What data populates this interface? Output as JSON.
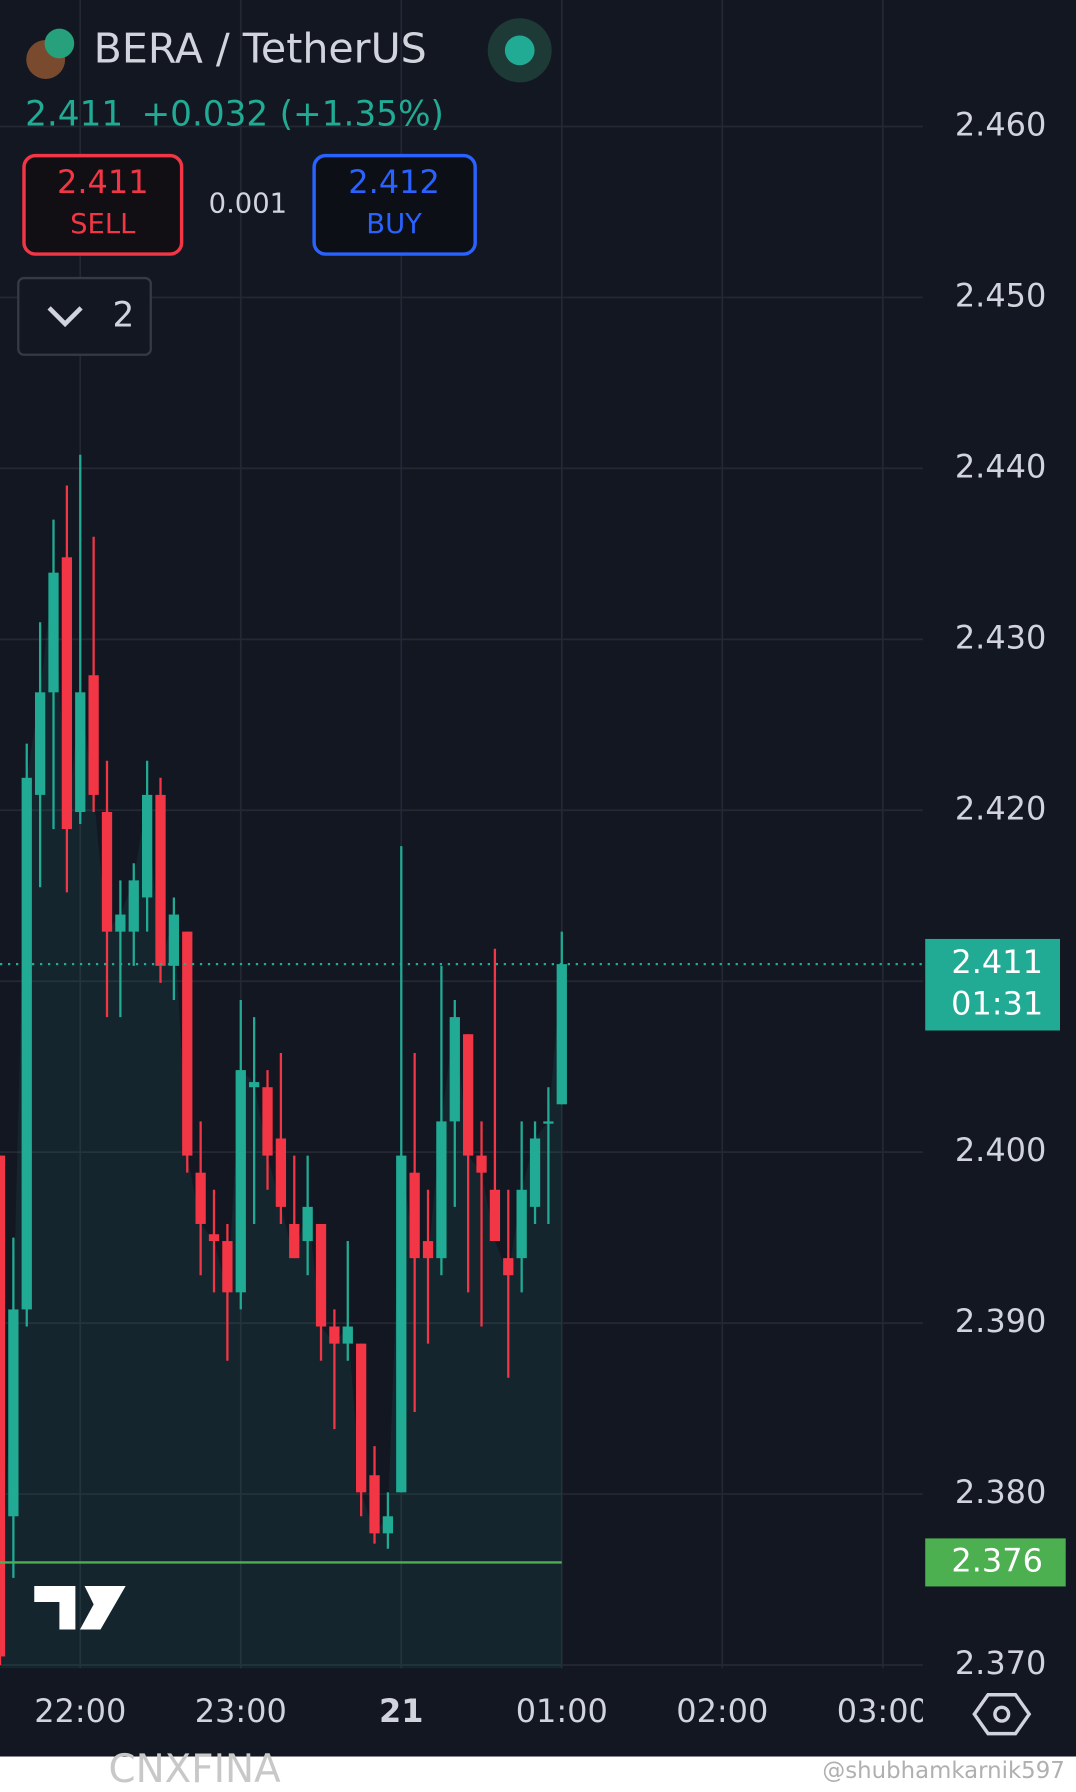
{
  "chart_data": {
    "type": "candlestick",
    "title": "BERA / TetherUS",
    "last": "2.411",
    "change": "+0.032",
    "change_pct": "(+1.35%)",
    "sell": {
      "price": "2.411",
      "label": "SELL"
    },
    "spread": "0.001",
    "buy": {
      "price": "2.412",
      "label": "BUY"
    },
    "dropdown": "2",
    "up_color": "#22ab94",
    "down_color": "#f23645",
    "x": [
      1290,
      1295,
      1300,
      1305,
      1310,
      1315,
      1320,
      1325,
      1330,
      1335,
      1340,
      1345,
      1350,
      1355,
      1360,
      1365,
      1370,
      1375,
      1380,
      1385,
      1390,
      1395,
      1400,
      1405,
      1410,
      1415,
      1420,
      1425,
      1430,
      1435,
      1440,
      1445,
      1450,
      1455,
      1460,
      1465,
      1470,
      1475,
      1480,
      1485,
      1490,
      1495,
      1500
    ],
    "open": [
      2.3998,
      2.3787,
      2.3908,
      2.4209,
      2.4269,
      2.4348,
      2.4199,
      2.4279,
      2.4199,
      2.4129,
      2.4129,
      2.4149,
      2.4209,
      2.4109,
      2.4129,
      2.3988,
      2.3952,
      2.3948,
      2.3918,
      2.4038,
      2.4038,
      2.4008,
      2.3958,
      2.3948,
      2.3958,
      2.3898,
      2.3888,
      2.3888,
      2.3811,
      2.3777,
      2.3801,
      2.3988,
      2.3948,
      2.3938,
      2.4018,
      2.4069,
      2.3998,
      2.3978,
      2.3938,
      2.3938,
      2.3968,
      2.4017,
      2.4028
    ],
    "high": [
      2.3998,
      2.395,
      2.4239,
      2.431,
      2.437,
      2.439,
      2.4408,
      2.436,
      2.4229,
      2.4159,
      2.4169,
      2.4229,
      2.4219,
      2.4149,
      2.4129,
      2.4018,
      2.3978,
      2.3958,
      2.4089,
      2.4079,
      2.4048,
      2.4058,
      2.3998,
      2.3998,
      2.3958,
      2.3908,
      2.3948,
      2.3888,
      2.3828,
      2.3801,
      2.4179,
      2.4058,
      2.3978,
      2.4109,
      2.4089,
      2.4069,
      2.4018,
      2.4119,
      2.3978,
      2.4018,
      2.4018,
      2.4038,
      2.4129
    ],
    "low": [
      2.37,
      2.3751,
      2.3898,
      2.4155,
      2.4189,
      2.4152,
      2.4192,
      2.4199,
      2.4079,
      2.4079,
      2.4109,
      2.4129,
      2.4099,
      2.4089,
      2.3988,
      2.3928,
      2.3918,
      2.3878,
      2.3908,
      2.3958,
      2.3978,
      2.3958,
      2.3938,
      2.3928,
      2.3878,
      2.3838,
      2.3878,
      2.3787,
      2.3771,
      2.3768,
      2.3801,
      2.3848,
      2.3888,
      2.3928,
      2.3968,
      2.3918,
      2.3898,
      2.3948,
      2.3868,
      2.3918,
      2.3958,
      2.3958,
      2.4028
    ],
    "close": [
      2.3705,
      2.3908,
      2.4219,
      2.4269,
      2.4339,
      2.4189,
      2.4269,
      2.4209,
      2.4129,
      2.4139,
      2.4159,
      2.4209,
      2.4109,
      2.4139,
      2.3998,
      2.3958,
      2.3948,
      2.3918,
      2.4048,
      2.4041,
      2.3998,
      2.3968,
      2.3938,
      2.3968,
      2.3898,
      2.3888,
      2.3898,
      2.3801,
      2.3777,
      2.3787,
      2.3998,
      2.3938,
      2.3938,
      2.4018,
      2.4079,
      2.3998,
      2.3988,
      2.3948,
      2.3928,
      2.3978,
      2.4008,
      2.4018,
      2.411
    ],
    "last_price": {
      "value": 2.411,
      "label": "2.411",
      "countdown": "01:31"
    },
    "low_line": {
      "value": 2.376,
      "label": "2.376",
      "color": "#4caf50"
    },
    "xlim": [
      1290,
      1635
    ],
    "xticks": [
      {
        "value": 1320,
        "label": "22:00"
      },
      {
        "value": 1380,
        "label": "23:00"
      },
      {
        "value": 1440,
        "label": "21"
      },
      {
        "value": 1500,
        "label": "01:00"
      },
      {
        "value": 1560,
        "label": "02:00"
      },
      {
        "value": 1620,
        "label": "03:00"
      }
    ],
    "ylim": [
      2.3698,
      2.4674
    ],
    "yticks": [
      {
        "value": 2.46,
        "label": "2.460"
      },
      {
        "value": 2.45,
        "label": "2.450"
      },
      {
        "value": 2.44,
        "label": "2.440"
      },
      {
        "value": 2.43,
        "label": "2.430"
      },
      {
        "value": 2.42,
        "label": "2.420"
      },
      {
        "value": 2.41,
        "label": "2.410"
      },
      {
        "value": 2.4,
        "label": "2.400"
      },
      {
        "value": 2.39,
        "label": "2.390"
      },
      {
        "value": 2.38,
        "label": "2.380"
      },
      {
        "value": 2.37,
        "label": "2.370"
      }
    ],
    "grid": true,
    "watermarks": [
      "CNXFINA",
      "@shubhamkarnik597"
    ]
  }
}
